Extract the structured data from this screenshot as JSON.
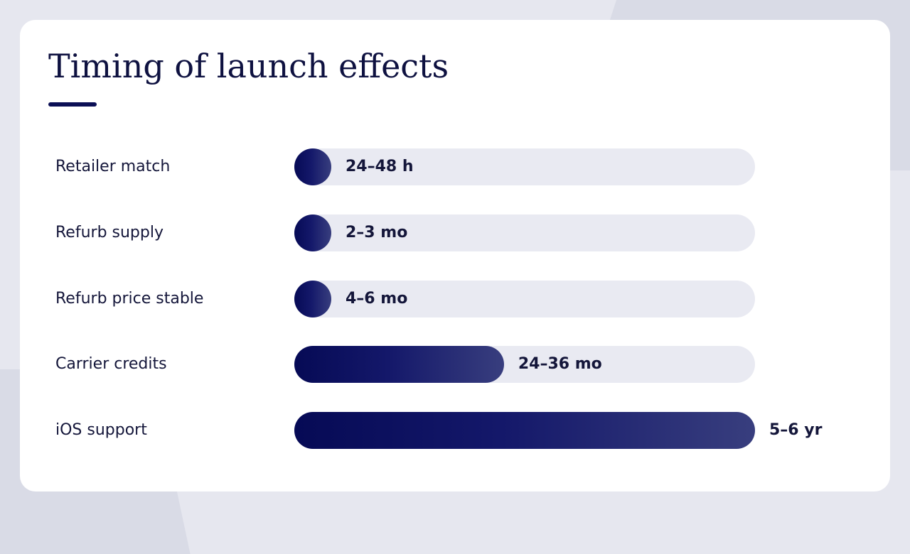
{
  "slide": {
    "title": "Timing of launch effects"
  },
  "chart_data": {
    "type": "bar",
    "orientation": "horizontal",
    "title": "Timing of launch effects",
    "categories": [
      "Retailer match",
      "Refurb supply",
      "Refurb price stable",
      "Carrier credits",
      "iOS support"
    ],
    "value_labels": [
      "24–48 h",
      "2–3 mo",
      "4–6 mo",
      "24–36 mo",
      "5–6 yr"
    ],
    "relative_values": [
      0.08,
      0.08,
      0.08,
      0.455,
      1.0
    ],
    "xlabel": "",
    "ylabel": "",
    "grid": false,
    "legend": "none",
    "colors": {
      "bar_start": "#060a55",
      "bar_end": "#383e7e",
      "track": "#e9eaf2"
    }
  }
}
